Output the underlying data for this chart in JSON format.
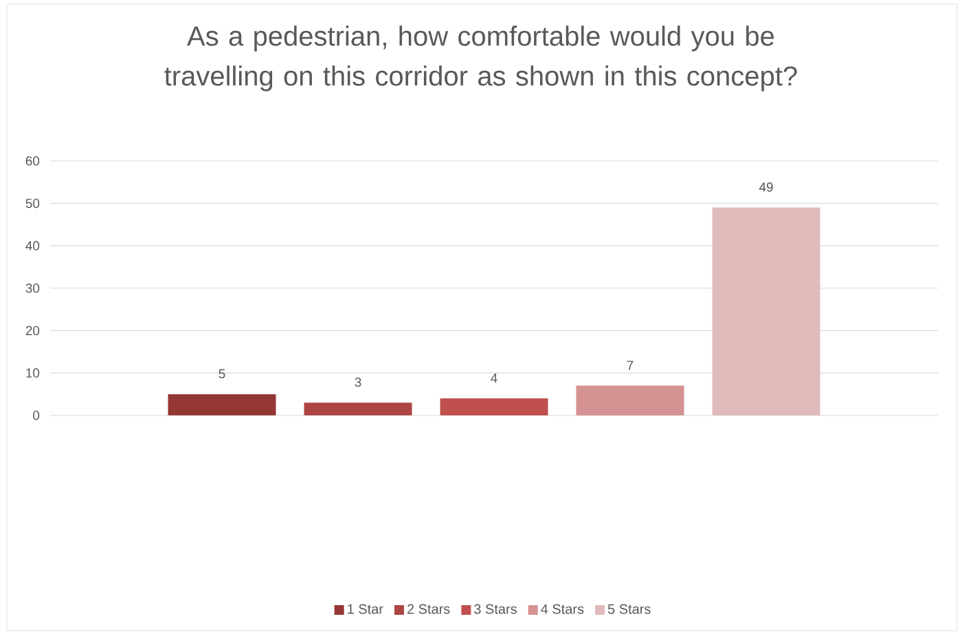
{
  "chart_data": {
    "type": "bar",
    "title": "As a pedestrian, how comfortable would you be travelling on this corridor as shown in this concept?",
    "categories": [
      null
    ],
    "series": [
      {
        "name": "1 Star",
        "color": "#943634",
        "values": [
          5
        ]
      },
      {
        "name": "2 Stars",
        "color": "#ad4543",
        "values": [
          3
        ]
      },
      {
        "name": "3 Stars",
        "color": "#c0504d",
        "values": [
          4
        ]
      },
      {
        "name": "4 Stars",
        "color": "#d49392",
        "values": [
          7
        ]
      },
      {
        "name": "5 Stars",
        "color": "#e0bbbb",
        "values": [
          49
        ]
      }
    ],
    "ylim": [
      0,
      60
    ],
    "yticks": [
      0,
      10,
      20,
      30,
      40,
      50,
      60
    ],
    "grid": "y",
    "legend": "bottom",
    "data_labels": true
  }
}
